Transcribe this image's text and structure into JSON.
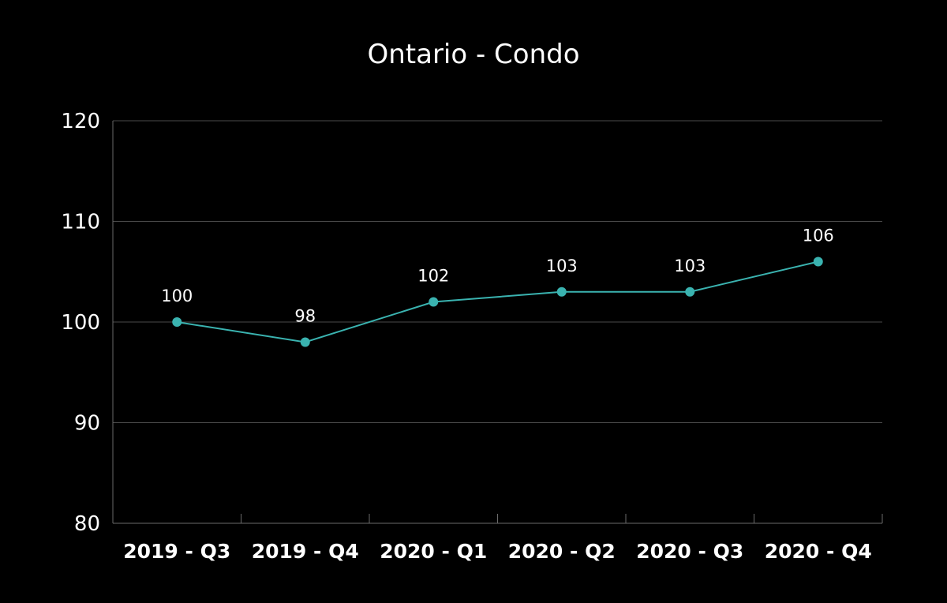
{
  "chart_data": {
    "type": "line",
    "title": "Ontario - Condo",
    "xlabel": "",
    "ylabel": "",
    "categories": [
      "2019 - Q3",
      "2019 - Q4",
      "2020 - Q1",
      "2020 - Q2",
      "2020 - Q3",
      "2020 - Q4"
    ],
    "series": [
      {
        "values": [
          100,
          98,
          102,
          103,
          103,
          106
        ],
        "data_labels": [
          "100",
          "98",
          "102",
          "103",
          "103",
          "106"
        ]
      }
    ],
    "ylim": [
      80,
      120
    ],
    "yticks": [
      80,
      90,
      100,
      110,
      120
    ],
    "ytick_labels": [
      "80",
      "90",
      "100",
      "110",
      "120"
    ],
    "grid": true,
    "legend": "none"
  },
  "colors": {
    "background": "#000000",
    "line": "#3ab3b0",
    "marker": "#3ab3b0",
    "gridline": "#4a4a4a",
    "axis": "#6a6a6a",
    "text": "#ffffff"
  }
}
